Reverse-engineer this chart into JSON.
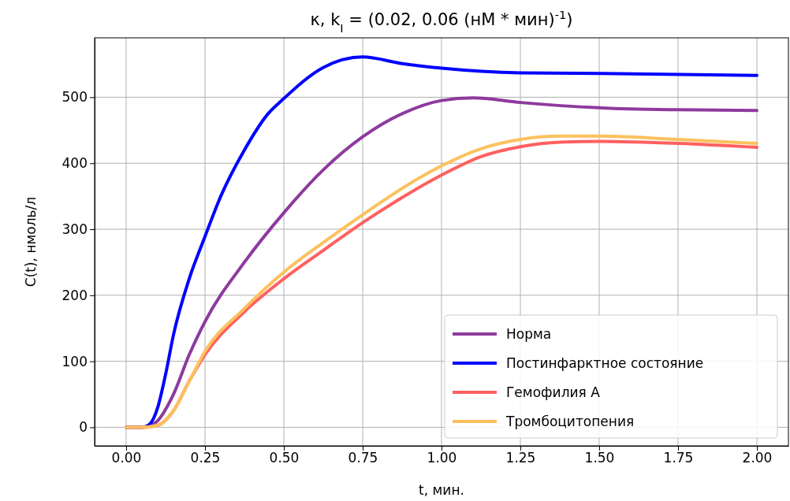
{
  "chart_data": {
    "type": "line",
    "title": "κ, k$_{I}$ = (0.02, 0.06 (нМ * мин)$^{-1}$)",
    "xlabel": "t, мин.",
    "ylabel": "C(t), нмоль/л",
    "xlim": [
      -0.1,
      2.1
    ],
    "ylim": [
      -28.1,
      590
    ],
    "xticks": [
      {
        "value": 0,
        "label": "0.00"
      },
      {
        "value": 0.25,
        "label": "0.25"
      },
      {
        "value": 0.5,
        "label": "0.50"
      },
      {
        "value": 0.75,
        "label": "0.75"
      },
      {
        "value": 1,
        "label": "1.00"
      },
      {
        "value": 1.25,
        "label": "1.25"
      },
      {
        "value": 1.5,
        "label": "1.50"
      },
      {
        "value": 1.75,
        "label": "1.75"
      },
      {
        "value": 2,
        "label": "2.00"
      }
    ],
    "yticks": [
      0,
      100,
      200,
      300,
      400,
      500
    ],
    "grid": true,
    "legend": "bottom right",
    "series": [
      {
        "name": "Норма",
        "color": "#8e3a9e",
        "x": [
          0,
          0.05,
          0.075,
          0.1,
          0.15,
          0.2,
          0.25,
          0.375,
          0.5,
          0.625,
          0.75,
          0.875,
          1.0,
          1.1,
          1.25,
          1.5,
          1.75,
          2.0
        ],
        "values": [
          0,
          0,
          2,
          10,
          50,
          110,
          160,
          250,
          325,
          390,
          440,
          475,
          495,
          499,
          492,
          484,
          481,
          480
        ]
      },
      {
        "name": "Постинфарктное состояние",
        "color": "#0000ff",
        "x": [
          0,
          0.05,
          0.075,
          0.1,
          0.125,
          0.15,
          0.2,
          0.25,
          0.3,
          0.375,
          0.45,
          0.5,
          0.625,
          0.75,
          0.875,
          1.0,
          1.25,
          1.5,
          2.0
        ],
        "values": [
          0,
          0,
          5,
          30,
          80,
          140,
          225,
          289,
          350,
          420,
          475,
          498,
          545,
          561,
          551,
          544,
          537,
          536,
          533
        ]
      },
      {
        "name": "Гемофилия А",
        "color": "#ff6060",
        "x": [
          0,
          0.05,
          0.1,
          0.15,
          0.2,
          0.25,
          0.375,
          0.5,
          0.625,
          0.75,
          0.875,
          1.0,
          1.125,
          1.25,
          1.375,
          1.5,
          1.75,
          2.0
        ],
        "values": [
          0,
          0,
          3,
          25,
          70,
          110,
          175,
          225,
          268,
          310,
          348,
          382,
          410,
          425,
          432,
          433,
          430,
          424
        ]
      },
      {
        "name": "Тромбоцитопения",
        "color": "#fcc15e",
        "x": [
          0,
          0.05,
          0.1,
          0.15,
          0.2,
          0.25,
          0.375,
          0.5,
          0.625,
          0.75,
          0.875,
          1.0,
          1.125,
          1.25,
          1.375,
          1.5,
          1.75,
          2.0
        ],
        "values": [
          0,
          0,
          3,
          25,
          70,
          115,
          180,
          235,
          280,
          322,
          362,
          396,
          422,
          436,
          441,
          441,
          436,
          430
        ]
      }
    ]
  }
}
